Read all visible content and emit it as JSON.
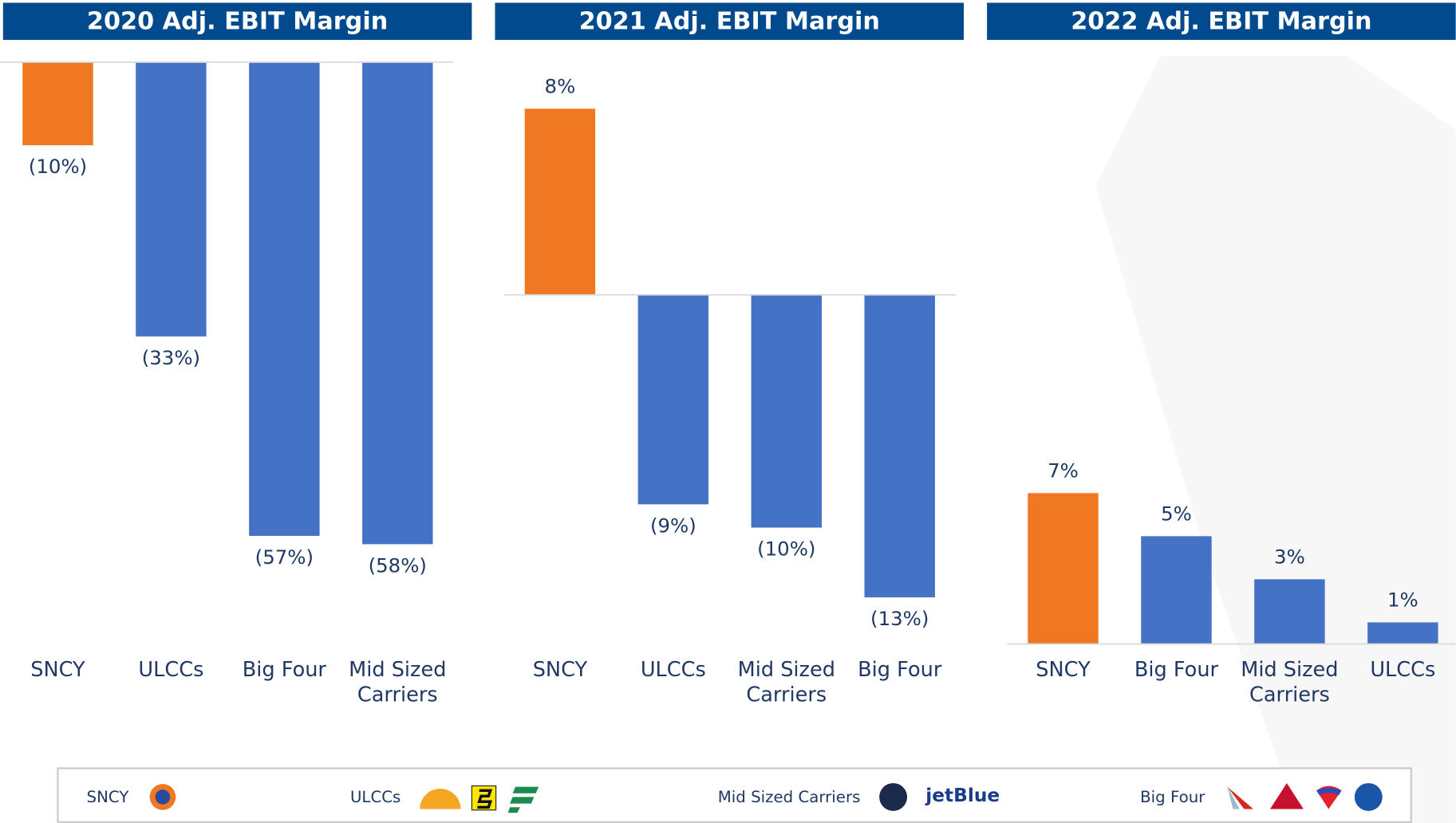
{
  "chart_data": [
    {
      "type": "bar",
      "title": "2020 Adj. EBIT Margin",
      "categories": [
        "SNCY",
        "ULCCs",
        "Big Four",
        "Mid Sized Carriers"
      ],
      "values": [
        -10,
        -33,
        -57,
        -58
      ],
      "value_labels": [
        "(10%)",
        "(33%)",
        "(57%)",
        "(58%)"
      ],
      "colors": [
        "#f07823",
        "#4472c4",
        "#4472c4",
        "#4472c4"
      ],
      "ylim": [
        -70,
        0
      ]
    },
    {
      "type": "bar",
      "title": "2021 Adj. EBIT Margin",
      "categories": [
        "SNCY",
        "ULCCs",
        "Mid Sized Carriers",
        "Big Four"
      ],
      "values": [
        8,
        -9,
        -10,
        -13
      ],
      "value_labels": [
        "8%",
        "(9%)",
        "(10%)",
        "(13%)"
      ],
      "colors": [
        "#f07823",
        "#4472c4",
        "#4472c4",
        "#4472c4"
      ],
      "ylim": [
        -15,
        10
      ]
    },
    {
      "type": "bar",
      "title": "2022 Adj. EBIT Margin",
      "categories": [
        "SNCY",
        "Big Four",
        "Mid Sized Carriers",
        "ULCCs"
      ],
      "values": [
        7,
        5,
        3,
        1
      ],
      "value_labels": [
        "7%",
        "5%",
        "3%",
        "1%"
      ],
      "colors": [
        "#f07823",
        "#4472c4",
        "#4472c4",
        "#4472c4"
      ],
      "ylim": [
        0,
        27
      ]
    }
  ],
  "legend": [
    {
      "label": "SNCY"
    },
    {
      "label": "ULCCs"
    },
    {
      "label": "Mid Sized Carriers",
      "logo_text": "jetBlue"
    },
    {
      "label": "Big Four"
    }
  ]
}
